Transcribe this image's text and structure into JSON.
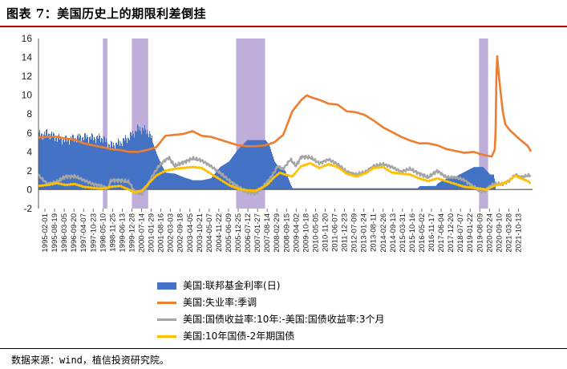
{
  "title": "图表 7：美国历史上的期限利差倒挂",
  "source": "数据来源：wind，植信投资研究院。",
  "chart_data": {
    "type": "line",
    "title": "图表 7：美国历史上的期限利差倒挂",
    "ylim": [
      -2,
      16
    ],
    "yticks": [
      -2,
      0,
      2,
      4,
      6,
      8,
      10,
      12,
      14,
      16
    ],
    "xrange": [
      1995.0,
      2022.25
    ],
    "xtick_labels": [
      "1995-02-01",
      "1995-08-19",
      "1996-03-05",
      "1996-09-20",
      "1997-04-07",
      "1997-10-23",
      "1998-05-10",
      "1998-11-25",
      "1999-06-13",
      "1999-12-28",
      "2000-07-14",
      "2001-01-29",
      "2001-08-16",
      "2002-03-03",
      "2002-09-18",
      "2003-04-05",
      "2003-10-21",
      "2004-05-07",
      "2004-11-22",
      "2005-06-09",
      "2005-12-25",
      "2006-07-12",
      "2007-01-27",
      "2007-08-14",
      "2008-02-29",
      "2008-09-15",
      "2009-04-02",
      "2009-10-18",
      "2010-05-05",
      "2010-11-20",
      "2011-06-07",
      "2011-12-23",
      "2012-07-09",
      "2013-01-24",
      "2013-08-11",
      "2014-02-26",
      "2014-09-13",
      "2015-03-31",
      "2015-10-16",
      "2016-05-02",
      "2016-11-17",
      "2017-06-04",
      "2017-12-20",
      "2018-07-07",
      "2019-01-22",
      "2019-08-09",
      "2020-02-24",
      "2020-09-10",
      "2021-03-28",
      "2021-10-13"
    ],
    "shaded_periods": [
      {
        "start": 1998.55,
        "end": 1998.8
      },
      {
        "start": 2000.15,
        "end": 2001.05
      },
      {
        "start": 2005.9,
        "end": 2007.5
      },
      {
        "start": 2019.3,
        "end": 2019.8
      }
    ],
    "series": [
      {
        "name": "美国:联邦基金利率(日)",
        "type": "area",
        "color": "#4472c4",
        "x": [
          1995.0,
          1995.5,
          1996.0,
          1996.5,
          1997.0,
          1997.5,
          1998.0,
          1998.5,
          1998.8,
          1999.0,
          1999.5,
          2000.0,
          2000.5,
          2001.0,
          2001.2,
          2001.5,
          2001.8,
          2002.0,
          2002.5,
          2003.0,
          2003.5,
          2004.0,
          2004.5,
          2005.0,
          2005.5,
          2006.0,
          2006.5,
          2007.0,
          2007.5,
          2007.7,
          2008.0,
          2008.3,
          2008.6,
          2008.9,
          2009.0,
          2015.9,
          2016.0,
          2016.9,
          2017.0,
          2017.5,
          2018.0,
          2018.5,
          2019.0,
          2019.5,
          2019.7,
          2019.9,
          2020.1,
          2020.2,
          2022.2
        ],
        "values": [
          5.8,
          6.0,
          5.5,
          5.3,
          5.5,
          5.6,
          5.5,
          5.5,
          4.9,
          4.7,
          5.0,
          5.6,
          6.5,
          6.2,
          5.5,
          3.8,
          2.5,
          1.8,
          1.7,
          1.3,
          1.0,
          1.0,
          1.2,
          2.4,
          3.0,
          4.3,
          5.25,
          5.25,
          5.25,
          4.8,
          3.0,
          2.2,
          2.0,
          0.5,
          0.15,
          0.15,
          0.37,
          0.4,
          0.66,
          1.2,
          1.4,
          1.9,
          2.4,
          2.4,
          2.0,
          1.6,
          1.6,
          0.06,
          0.08
        ]
      },
      {
        "name": "美国:失业率:季调",
        "type": "line",
        "color": "#ed7d31",
        "x": [
          1995.0,
          1995.5,
          1996.0,
          1996.5,
          1997.0,
          1997.5,
          1998.0,
          1998.5,
          1999.0,
          1999.5,
          2000.0,
          2000.5,
          2001.0,
          2001.5,
          2002.0,
          2002.5,
          2003.0,
          2003.5,
          2004.0,
          2004.5,
          2005.0,
          2005.5,
          2006.0,
          2006.5,
          2007.0,
          2007.5,
          2008.0,
          2008.5,
          2009.0,
          2009.5,
          2009.8,
          2010.0,
          2010.5,
          2011.0,
          2011.5,
          2012.0,
          2012.5,
          2013.0,
          2013.5,
          2014.0,
          2014.5,
          2015.0,
          2015.5,
          2016.0,
          2016.5,
          2017.0,
          2017.5,
          2018.0,
          2018.5,
          2019.0,
          2019.5,
          2020.0,
          2020.2,
          2020.28,
          2020.35,
          2020.45,
          2020.6,
          2020.75,
          2021.0,
          2021.5,
          2022.0,
          2022.2
        ],
        "values": [
          5.5,
          5.6,
          5.6,
          5.4,
          5.3,
          4.9,
          4.7,
          4.5,
          4.3,
          4.2,
          4.0,
          4.0,
          4.2,
          4.5,
          5.7,
          5.8,
          5.9,
          6.2,
          5.7,
          5.6,
          5.3,
          5.0,
          4.7,
          4.6,
          4.6,
          4.7,
          5.0,
          5.8,
          8.3,
          9.5,
          10.0,
          9.8,
          9.5,
          9.1,
          9.0,
          8.3,
          8.2,
          7.9,
          7.3,
          6.6,
          6.1,
          5.6,
          5.2,
          4.9,
          4.9,
          4.7,
          4.3,
          4.1,
          3.9,
          4.0,
          3.7,
          3.5,
          4.4,
          14.7,
          13.0,
          11.0,
          8.4,
          6.9,
          6.3,
          5.4,
          4.6,
          3.9
        ]
      },
      {
        "name": "美国:国债收益率:10年:-美国:国债收益率:3个月",
        "type": "line",
        "color": "#a5a5a5",
        "x": [
          1995.0,
          1995.5,
          1996.0,
          1996.5,
          1997.0,
          1997.5,
          1998.0,
          1998.5,
          1998.8,
          1999.0,
          1999.5,
          2000.0,
          2000.3,
          2000.7,
          2001.0,
          2001.3,
          2001.6,
          2001.9,
          2002.2,
          2002.5,
          2003.0,
          2003.5,
          2004.0,
          2004.5,
          2005.0,
          2005.5,
          2006.0,
          2006.3,
          2006.6,
          2007.0,
          2007.3,
          2007.6,
          2007.9,
          2008.2,
          2008.5,
          2008.9,
          2009.2,
          2009.5,
          2010.0,
          2010.5,
          2011.0,
          2011.5,
          2012.0,
          2012.5,
          2013.0,
          2013.5,
          2014.0,
          2014.5,
          2015.0,
          2015.5,
          2016.0,
          2016.5,
          2017.0,
          2017.5,
          2018.0,
          2018.5,
          2019.0,
          2019.3,
          2019.6,
          2019.8,
          2020.1,
          2020.3,
          2020.6,
          2021.0,
          2021.3,
          2021.6,
          2022.0,
          2022.2
        ],
        "values": [
          1.5,
          0.6,
          0.8,
          1.4,
          1.4,
          1.0,
          0.6,
          0.4,
          0.0,
          1.0,
          1.0,
          0.8,
          -0.2,
          -0.5,
          0.4,
          1.5,
          2.4,
          3.0,
          3.4,
          2.5,
          2.9,
          3.3,
          3.1,
          2.5,
          1.8,
          1.0,
          0.3,
          -0.1,
          -0.3,
          -0.4,
          0.1,
          0.8,
          1.5,
          2.5,
          2.2,
          3.2,
          2.5,
          3.5,
          3.4,
          2.8,
          3.2,
          2.7,
          1.9,
          1.6,
          1.8,
          2.5,
          2.7,
          2.4,
          1.9,
          2.2,
          1.7,
          1.3,
          2.0,
          1.3,
          1.3,
          1.0,
          0.3,
          -0.1,
          -0.2,
          0.2,
          0.6,
          0.6,
          0.6,
          1.0,
          1.6,
          1.3,
          1.5,
          1.5
        ]
      },
      {
        "name": "美国:10年国债-2年期国债",
        "type": "line",
        "color": "#ffc000",
        "x": [
          1995.0,
          1995.5,
          1996.0,
          1996.5,
          1997.0,
          1997.5,
          1998.0,
          1998.5,
          1999.0,
          1999.5,
          2000.0,
          2000.3,
          2000.7,
          2001.0,
          2001.5,
          2002.0,
          2002.5,
          2003.0,
          2003.5,
          2004.0,
          2004.5,
          2005.0,
          2005.5,
          2006.0,
          2006.3,
          2006.6,
          2007.0,
          2007.3,
          2007.6,
          2008.0,
          2008.3,
          2008.6,
          2009.0,
          2009.5,
          2010.0,
          2010.5,
          2011.0,
          2011.5,
          2012.0,
          2012.5,
          2013.0,
          2013.5,
          2014.0,
          2014.5,
          2015.0,
          2015.5,
          2016.0,
          2016.5,
          2017.0,
          2017.5,
          2018.0,
          2018.5,
          2019.0,
          2019.4,
          2019.7,
          2020.0,
          2020.3,
          2020.6,
          2021.0,
          2021.3,
          2021.6,
          2022.0,
          2022.2
        ],
        "values": [
          0.4,
          0.5,
          0.7,
          0.5,
          0.6,
          0.3,
          0.2,
          0.1,
          0.3,
          0.4,
          0.0,
          -0.3,
          -0.1,
          0.5,
          1.5,
          2.0,
          2.2,
          2.3,
          2.4,
          2.3,
          1.7,
          1.1,
          0.5,
          0.1,
          0.0,
          -0.1,
          -0.1,
          0.2,
          0.5,
          1.3,
          1.8,
          1.6,
          1.4,
          2.5,
          2.8,
          2.3,
          2.7,
          2.4,
          1.7,
          1.4,
          1.7,
          2.3,
          2.4,
          1.8,
          1.7,
          1.6,
          1.2,
          0.9,
          1.2,
          0.9,
          0.6,
          0.3,
          0.2,
          0.1,
          0.0,
          0.3,
          0.5,
          0.6,
          1.0,
          1.5,
          1.2,
          0.9,
          0.6
        ]
      }
    ]
  },
  "legend": [
    {
      "label": "美国:联邦基金利率(日)",
      "kind": "block",
      "color": "#4472c4"
    },
    {
      "label": "美国:失业率:季调",
      "kind": "line",
      "color": "#ed7d31"
    },
    {
      "label": "美国:国债收益率:10年:-美国:国债收益率:3个月",
      "kind": "line",
      "color": "#a5a5a5"
    },
    {
      "label": "美国:10年国债-2年期国债",
      "kind": "line",
      "color": "#ffc000"
    }
  ]
}
